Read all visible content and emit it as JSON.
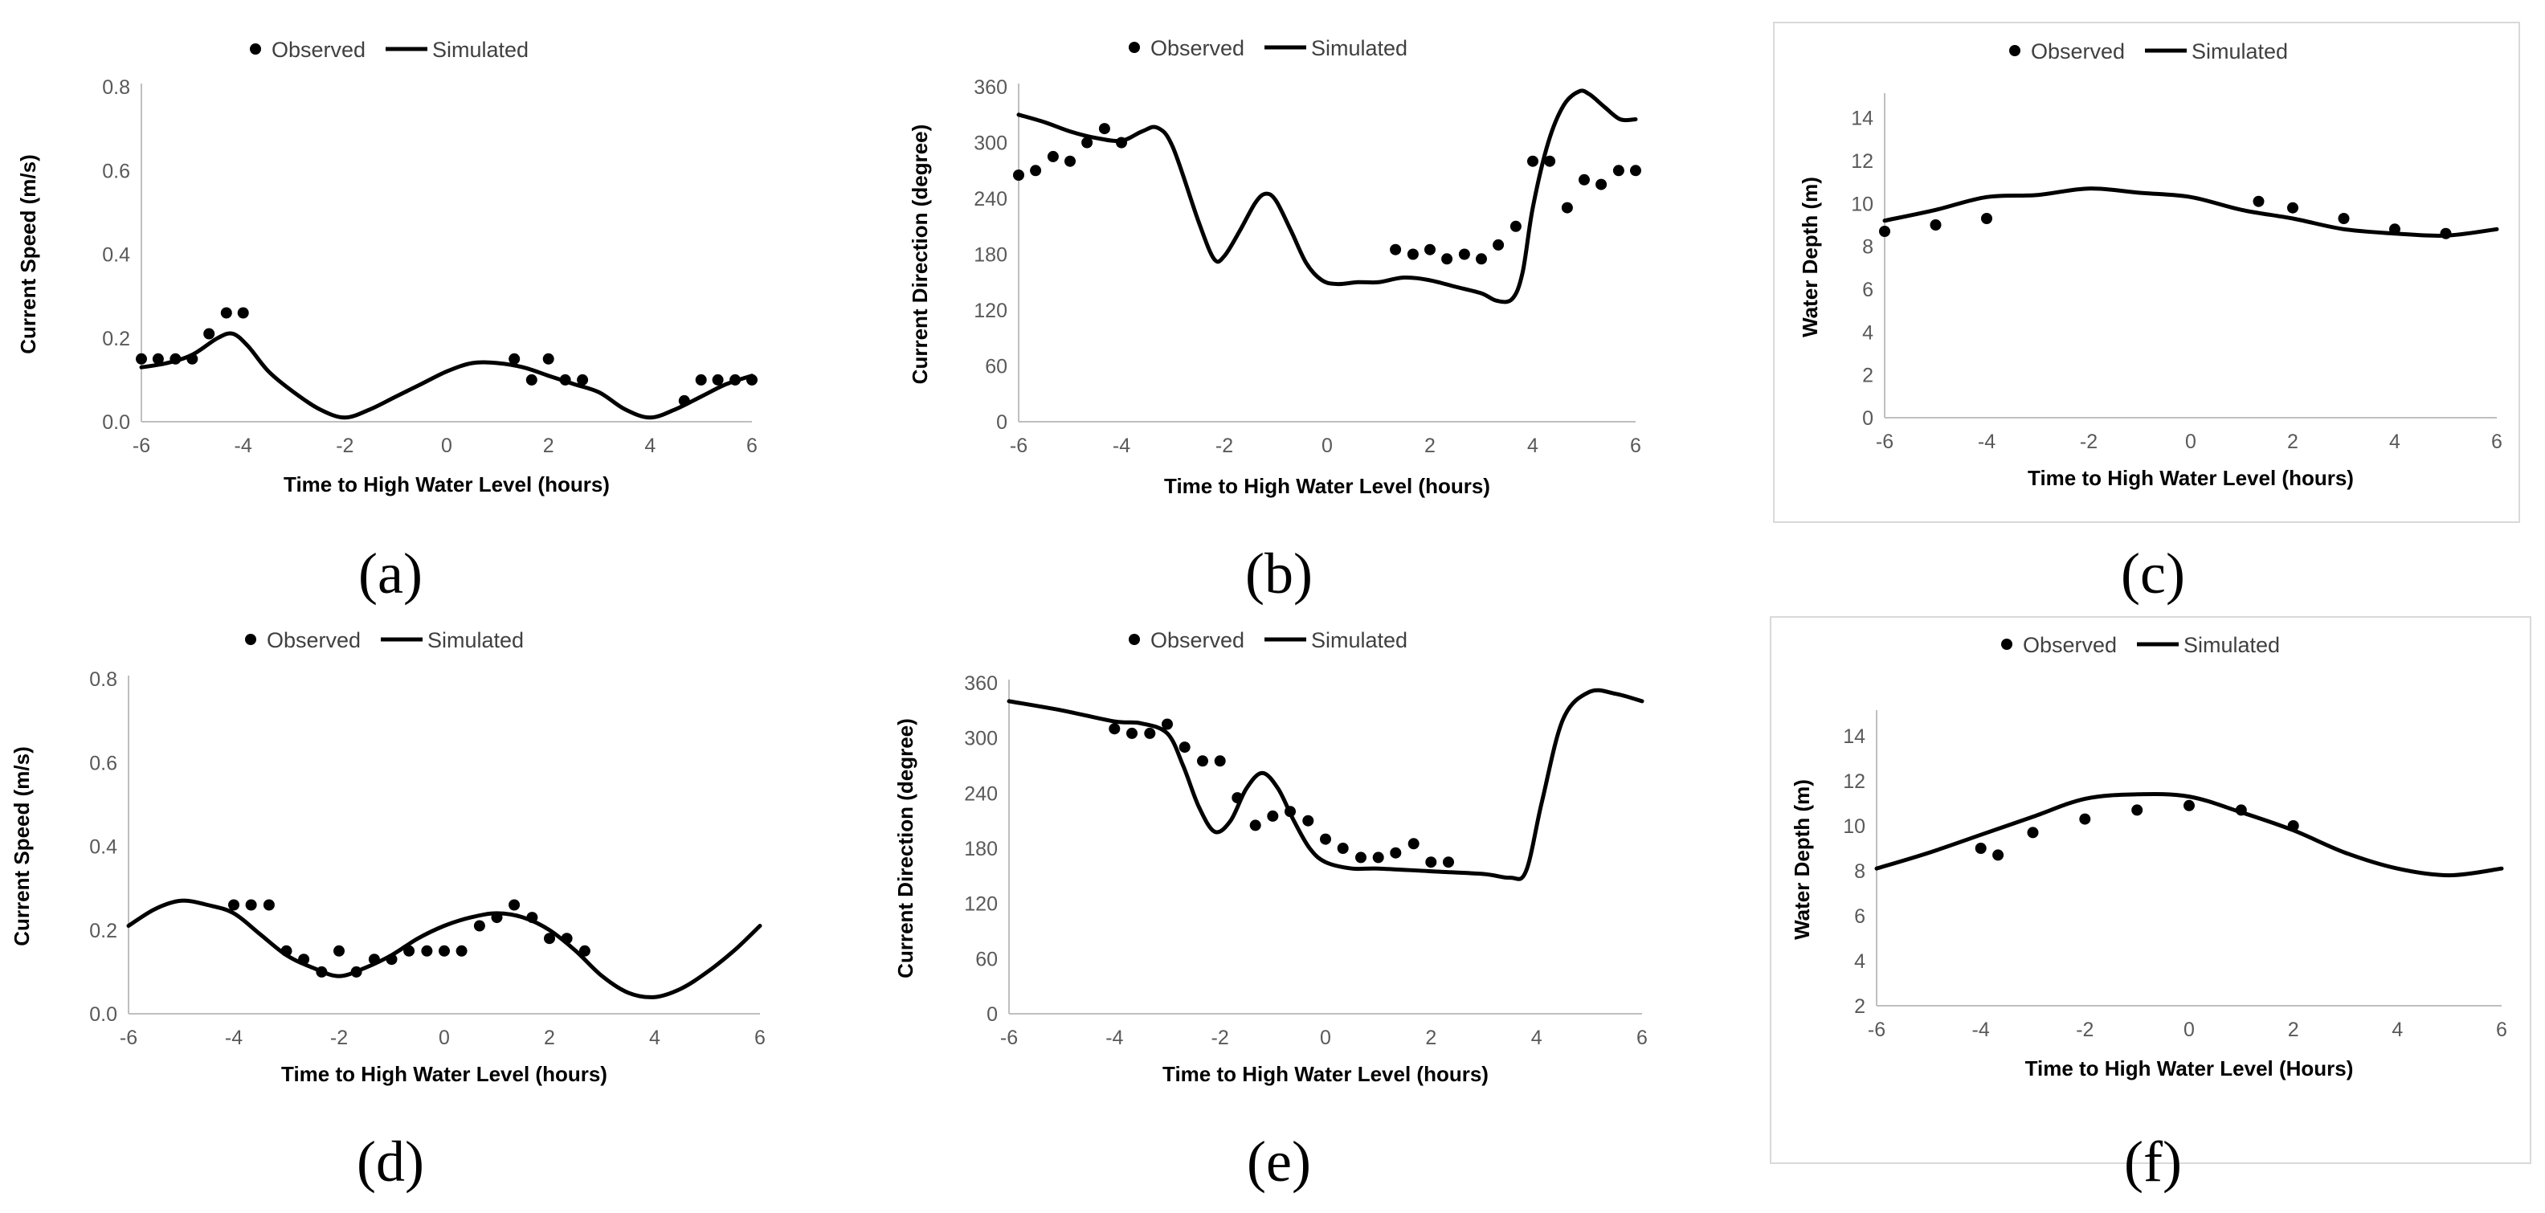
{
  "chart_data": [
    {
      "panel": "(a)",
      "type": "line",
      "xlabel": "Time to High Water Level (hours)",
      "ylabel": "Current Speed (m/s)",
      "xlim": [
        -6,
        6
      ],
      "ylim": [
        0,
        0.8
      ],
      "xticks": [
        "-6",
        "-4",
        "-2",
        "0",
        "2",
        "4",
        "6"
      ],
      "yticks": [
        "0.0",
        "0.2",
        "0.4",
        "0.6",
        "0.8"
      ],
      "legend": [
        "Observed",
        "Simulated"
      ],
      "series": [
        {
          "name": "Observed",
          "style": "markers",
          "x": [
            -6,
            -5.67,
            -5.33,
            -5,
            -4.67,
            -4.33,
            -4,
            1.33,
            1.67,
            2,
            2.33,
            2.67,
            4.67,
            5,
            5.33,
            5.67,
            6
          ],
          "y": [
            0.15,
            0.15,
            0.15,
            0.15,
            0.21,
            0.26,
            0.26,
            0.15,
            0.1,
            0.15,
            0.1,
            0.1,
            0.05,
            0.1,
            0.1,
            0.1,
            0.1
          ]
        },
        {
          "name": "Simulated",
          "style": "line",
          "x": [
            -6,
            -5.5,
            -5,
            -4.5,
            -4.2,
            -3.9,
            -3.5,
            -3,
            -2.5,
            -2,
            -1.5,
            -1,
            -0.5,
            0,
            0.5,
            1,
            1.5,
            2,
            2.5,
            3,
            3.5,
            4,
            4.5,
            5,
            5.5,
            6
          ],
          "y": [
            0.13,
            0.14,
            0.16,
            0.2,
            0.21,
            0.18,
            0.12,
            0.07,
            0.03,
            0.01,
            0.03,
            0.06,
            0.09,
            0.12,
            0.14,
            0.14,
            0.13,
            0.11,
            0.09,
            0.07,
            0.03,
            0.01,
            0.03,
            0.06,
            0.09,
            0.11
          ]
        }
      ]
    },
    {
      "panel": "(b)",
      "type": "line",
      "xlabel": "Time to High Water Level (hours)",
      "ylabel": "Current Direction (degree)",
      "xlim": [
        -6,
        6
      ],
      "ylim": [
        0,
        360
      ],
      "xticks": [
        "-6",
        "-4",
        "-2",
        "0",
        "2",
        "4",
        "6"
      ],
      "yticks": [
        "0",
        "60",
        "120",
        "180",
        "240",
        "300",
        "360"
      ],
      "legend": [
        "Observed",
        "Simulated"
      ],
      "series": [
        {
          "name": "Observed",
          "style": "markers",
          "x": [
            -6,
            -5.67,
            -5.33,
            -5,
            -4.67,
            -4.33,
            -4,
            1.33,
            1.67,
            2,
            2.33,
            2.67,
            3,
            3.33,
            3.67,
            4,
            4.33,
            4.67,
            5,
            5.33,
            5.67,
            6
          ],
          "y": [
            265,
            270,
            285,
            280,
            300,
            315,
            300,
            185,
            180,
            185,
            175,
            180,
            175,
            190,
            210,
            280,
            280,
            230,
            260,
            255,
            270,
            270
          ]
        },
        {
          "name": "Simulated",
          "style": "line",
          "x": [
            -6,
            -5.5,
            -5,
            -4.5,
            -4,
            -3.6,
            -3.3,
            -3,
            -2.5,
            -2.2,
            -2,
            -1.7,
            -1.4,
            -1.2,
            -1,
            -0.7,
            -0.4,
            -0.1,
            0.2,
            0.6,
            1,
            1.5,
            2,
            2.5,
            3,
            3.3,
            3.6,
            3.8,
            4,
            4.3,
            4.6,
            4.9,
            5.1,
            5.4,
            5.7,
            6
          ],
          "y": [
            330,
            322,
            312,
            305,
            302,
            312,
            316,
            295,
            215,
            175,
            178,
            205,
            235,
            245,
            238,
            205,
            170,
            152,
            148,
            150,
            150,
            155,
            152,
            145,
            138,
            130,
            132,
            160,
            230,
            300,
            340,
            355,
            352,
            338,
            325,
            325
          ]
        }
      ]
    },
    {
      "panel": "(c)",
      "type": "line",
      "xlabel": "Time to High Water Level (hours)",
      "ylabel": "Water Depth (m)",
      "xlim": [
        -6,
        6
      ],
      "ylim": [
        0,
        15
      ],
      "xticks": [
        "-6",
        "-4",
        "-2",
        "0",
        "2",
        "4",
        "6"
      ],
      "yticks": [
        "0",
        "2",
        "4",
        "6",
        "8",
        "10",
        "12",
        "14"
      ],
      "legend": [
        "Observed",
        "Simulated"
      ],
      "series": [
        {
          "name": "Observed",
          "style": "markers",
          "x": [
            -6,
            -5,
            -4,
            1.33,
            2,
            3,
            4,
            5
          ],
          "y": [
            8.7,
            9.0,
            9.3,
            10.1,
            9.8,
            9.3,
            8.8,
            8.6
          ]
        },
        {
          "name": "Simulated",
          "style": "line",
          "x": [
            -6,
            -5,
            -4,
            -3,
            -2,
            -1,
            0,
            1,
            2,
            3,
            4,
            5,
            6
          ],
          "y": [
            9.2,
            9.7,
            10.3,
            10.4,
            10.7,
            10.5,
            10.3,
            9.7,
            9.3,
            8.8,
            8.6,
            8.5,
            8.8
          ]
        }
      ]
    },
    {
      "panel": "(d)",
      "type": "line",
      "xlabel": "Time to High Water Level (hours)",
      "ylabel": "Current Speed (m/s)",
      "xlim": [
        -6,
        6
      ],
      "ylim": [
        0,
        0.8
      ],
      "xticks": [
        "-6",
        "-4",
        "-2",
        "0",
        "2",
        "4",
        "6"
      ],
      "yticks": [
        "0.0",
        "0.2",
        "0.4",
        "0.6",
        "0.8"
      ],
      "legend": [
        "Observed",
        "Simulated"
      ],
      "series": [
        {
          "name": "Observed",
          "style": "markers",
          "x": [
            -4,
            -3.67,
            -3.33,
            -3,
            -2.67,
            -2.33,
            -2,
            -1.67,
            -1.33,
            -1,
            -0.67,
            -0.33,
            0,
            0.33,
            0.67,
            1,
            1.33,
            1.67,
            2,
            2.33,
            2.67
          ],
          "y": [
            0.26,
            0.26,
            0.26,
            0.15,
            0.13,
            0.1,
            0.15,
            0.1,
            0.13,
            0.13,
            0.15,
            0.15,
            0.15,
            0.15,
            0.21,
            0.23,
            0.26,
            0.23,
            0.18,
            0.18,
            0.15
          ]
        },
        {
          "name": "Simulated",
          "style": "line",
          "x": [
            -6,
            -5.5,
            -5,
            -4.5,
            -4,
            -3.5,
            -3,
            -2.5,
            -2,
            -1.5,
            -1,
            -0.5,
            0,
            0.5,
            1,
            1.5,
            2,
            2.5,
            3,
            3.5,
            4,
            4.5,
            5,
            5.5,
            6
          ],
          "y": [
            0.21,
            0.25,
            0.27,
            0.26,
            0.24,
            0.19,
            0.14,
            0.11,
            0.09,
            0.11,
            0.14,
            0.18,
            0.21,
            0.23,
            0.24,
            0.23,
            0.2,
            0.15,
            0.09,
            0.05,
            0.04,
            0.06,
            0.1,
            0.15,
            0.21
          ]
        }
      ]
    },
    {
      "panel": "(e)",
      "type": "line",
      "xlabel": "Time to High Water Level (hours)",
      "ylabel": "Current Direction (degree)",
      "xlim": [
        -6,
        6
      ],
      "ylim": [
        0,
        360
      ],
      "xticks": [
        "-6",
        "-4",
        "-2",
        "0",
        "2",
        "4",
        "6"
      ],
      "yticks": [
        "0",
        "60",
        "120",
        "180",
        "240",
        "300",
        "360"
      ],
      "legend": [
        "Observed",
        "Simulated"
      ],
      "series": [
        {
          "name": "Observed",
          "style": "markers",
          "x": [
            -4,
            -3.67,
            -3.33,
            -3,
            -2.67,
            -2.33,
            -2,
            -1.67,
            -1.33,
            -1,
            -0.67,
            -0.33,
            0,
            0.33,
            0.67,
            1,
            1.33,
            1.67,
            2,
            2.33
          ],
          "y": [
            310,
            305,
            305,
            315,
            290,
            275,
            275,
            235,
            205,
            215,
            220,
            210,
            190,
            180,
            170,
            170,
            175,
            185,
            165,
            165
          ]
        },
        {
          "name": "Simulated",
          "style": "line",
          "x": [
            -6,
            -5,
            -4,
            -3.5,
            -3,
            -2.7,
            -2.4,
            -2.1,
            -1.8,
            -1.5,
            -1.2,
            -0.9,
            -0.6,
            -0.3,
            0,
            0.5,
            1,
            2,
            3,
            3.5,
            3.8,
            4.1,
            4.5,
            5,
            5.5,
            6
          ],
          "y": [
            340,
            330,
            318,
            316,
            305,
            270,
            225,
            198,
            210,
            245,
            262,
            245,
            210,
            180,
            165,
            158,
            158,
            155,
            152,
            148,
            155,
            230,
            320,
            350,
            348,
            340
          ]
        }
      ]
    },
    {
      "panel": "(f)",
      "type": "line",
      "xlabel": "Time to High Water Level (Hours)",
      "ylabel": "Water Depth (m)",
      "xlim": [
        -6,
        6
      ],
      "ylim": [
        2,
        15
      ],
      "xticks": [
        "-6",
        "-4",
        "-2",
        "0",
        "2",
        "4",
        "6"
      ],
      "yticks": [
        "2",
        "4",
        "6",
        "8",
        "10",
        "12",
        "14"
      ],
      "legend": [
        "Observed",
        "Simulated"
      ],
      "series": [
        {
          "name": "Observed",
          "style": "markers",
          "x": [
            -4,
            -3.67,
            -3,
            -2,
            -1,
            0,
            1,
            2
          ],
          "y": [
            9.0,
            8.7,
            9.7,
            10.3,
            10.7,
            10.9,
            10.7,
            10.0
          ]
        },
        {
          "name": "Simulated",
          "style": "line",
          "x": [
            -6,
            -5,
            -4,
            -3,
            -2,
            -1,
            0,
            1,
            2,
            3,
            4,
            5,
            6
          ],
          "y": [
            8.1,
            8.8,
            9.6,
            10.4,
            11.2,
            11.4,
            11.3,
            10.6,
            9.8,
            8.8,
            8.1,
            7.8,
            8.1
          ]
        }
      ]
    }
  ]
}
